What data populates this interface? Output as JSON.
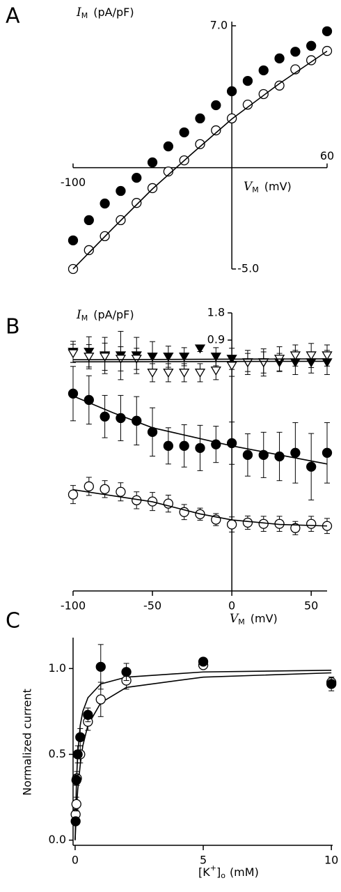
{
  "chart_data": [
    {
      "type": "scatter",
      "panel_label": "A",
      "color": "#000000",
      "ylabel": {
        "symbol": "I",
        "sub": "M",
        "unit": "(pA/pF)"
      },
      "xlabel": {
        "symbol": "V",
        "sub": "M",
        "unit": "(mV)"
      },
      "xlim": [
        -100,
        60
      ],
      "ylim": [
        -5,
        7
      ],
      "xticks": [
        -100,
        60
      ],
      "yticks": [
        {
          "value": 7,
          "label": "7.0"
        },
        {
          "value": -5,
          "label": "-5.0"
        }
      ],
      "x": [
        -100,
        -90,
        -80,
        -70,
        -60,
        -50,
        -40,
        -30,
        -20,
        -10,
        0,
        10,
        20,
        30,
        40,
        50,
        60
      ],
      "series": [
        {
          "marker": "filled-circle",
          "values": [
            -3.59,
            -2.59,
            -1.77,
            -1.15,
            -0.5,
            0.26,
            1.05,
            1.74,
            2.43,
            3.08,
            3.77,
            4.28,
            4.8,
            5.39,
            5.72,
            6.01,
            6.73
          ]
        },
        {
          "marker": "open-circle",
          "values": [
            -5.0,
            -4.07,
            -3.38,
            -2.59,
            -1.74,
            -1.01,
            -0.19,
            0.36,
            1.16,
            1.84,
            2.43,
            3.11,
            3.63,
            4.05,
            4.85,
            5.3,
            5.76
          ]
        },
        {
          "marker": "line",
          "x": [
            -100,
            -75,
            -50,
            -25,
            0,
            30,
            60
          ],
          "values": [
            -5.0,
            -3.0,
            -1.05,
            0.7,
            2.4,
            4.15,
            5.75
          ]
        }
      ]
    },
    {
      "type": "scatter",
      "panel_label": "B",
      "color": "#000000",
      "ylabel": {
        "symbol": "I",
        "sub": "M",
        "unit": "(pA/pF)"
      },
      "xlabel": {
        "symbol": "V",
        "sub": "M",
        "unit": "(mV)"
      },
      "xlim": [
        -100,
        60
      ],
      "ylim": [
        -7.4,
        1.8
      ],
      "xticks": [
        -100,
        -50,
        0,
        50
      ],
      "yticks": [
        1.8,
        0.9
      ],
      "x": [
        -100,
        -90,
        -80,
        -70,
        -60,
        -50,
        -40,
        -30,
        -20,
        -10,
        0,
        10,
        20,
        30,
        40,
        50,
        60
      ],
      "series": [
        {
          "marker": "filled-triangle",
          "values": [
            0.51,
            0.51,
            0.39,
            0.39,
            0.39,
            0.35,
            0.35,
            0.35,
            0.62,
            0.35,
            0.28,
            0.16,
            0.16,
            0.16,
            0.16,
            0.16,
            0.16
          ],
          "errors": [
            0.35,
            0.5,
            0.6,
            0.8,
            0.6,
            0.5,
            0.35,
            0.3,
            0.1,
            0.3,
            0.35,
            0.3,
            0.35,
            0.3,
            0.4,
            0.35,
            0.4
          ]
        },
        {
          "marker": "open-triangle",
          "values": [
            0.46,
            0.35,
            0.35,
            0.28,
            0.28,
            -0.18,
            -0.18,
            -0.18,
            -0.18,
            -0.11,
            0.05,
            0.16,
            0.16,
            0.28,
            0.39,
            0.39,
            0.39
          ],
          "errors": [
            0.3,
            0.4,
            0.45,
            0.4,
            0.35,
            0.3,
            0.3,
            0.3,
            0.3,
            0.3,
            0.35,
            0.4,
            0.45,
            0.4,
            0.35,
            0.4,
            0.35
          ]
        },
        {
          "marker": "filled-circle",
          "values": [
            -0.87,
            -1.08,
            -1.63,
            -1.68,
            -1.77,
            -2.14,
            -2.6,
            -2.6,
            -2.67,
            -2.55,
            -2.51,
            -2.9,
            -2.9,
            -2.95,
            -2.83,
            -3.29,
            -2.83
          ],
          "errors": [
            0.9,
            0.8,
            0.7,
            0.75,
            0.8,
            0.8,
            0.6,
            0.7,
            0.75,
            0.6,
            0.7,
            0.7,
            0.75,
            0.8,
            1.0,
            1.1,
            1.0
          ]
        },
        {
          "marker": "open-circle",
          "values": [
            -4.21,
            -3.94,
            -4.03,
            -4.12,
            -4.4,
            -4.44,
            -4.51,
            -4.79,
            -4.86,
            -5.04,
            -5.2,
            -5.14,
            -5.18,
            -5.18,
            -5.32,
            -5.18,
            -5.25
          ],
          "errors": [
            0.3,
            0.3,
            0.28,
            0.3,
            0.28,
            0.3,
            0.28,
            0.25,
            0.2,
            0.2,
            0.25,
            0.22,
            0.25,
            0.25,
            0.22,
            0.25,
            0.25
          ]
        },
        {
          "marker": "line",
          "x": [
            -100,
            60
          ],
          "values": [
            0.25,
            0.28
          ]
        },
        {
          "marker": "line",
          "x": [
            -100,
            60
          ],
          "values": [
            0.18,
            0.2
          ]
        },
        {
          "marker": "line",
          "x": [
            -100,
            -75,
            -50,
            -25,
            0,
            30,
            60
          ],
          "values": [
            -0.95,
            -1.5,
            -2.0,
            -2.3,
            -2.6,
            -2.9,
            -3.2
          ]
        },
        {
          "marker": "line",
          "x": [
            -100,
            -50,
            -20,
            0,
            30,
            60
          ],
          "values": [
            -4.05,
            -4.45,
            -4.85,
            -5.05,
            -5.2,
            -5.25
          ]
        }
      ]
    },
    {
      "type": "scatter",
      "panel_label": "C",
      "color": "#000000",
      "ylabel": {
        "text": "Normalized current"
      },
      "xlabel": {
        "pre": "[K",
        "sup": "+",
        "mid": "]",
        "sub": "o",
        "unit": "(mM)"
      },
      "xlim": [
        -0.08,
        10.05
      ],
      "ylim": [
        -0.03,
        1.18
      ],
      "xticks": [
        0,
        5,
        10
      ],
      "yticks": [
        {
          "value": 0,
          "label": "0.0"
        },
        {
          "value": 0.5,
          "label": "0.5"
        },
        {
          "value": 1,
          "label": "1.0"
        }
      ],
      "series": [
        {
          "marker": "line",
          "x": [
            0,
            0.05,
            0.1,
            0.2,
            0.3,
            0.5,
            1,
            2,
            5,
            10
          ],
          "values": [
            0,
            0.33,
            0.5,
            0.67,
            0.75,
            0.83,
            0.91,
            0.95,
            0.98,
            0.99
          ]
        },
        {
          "marker": "line",
          "x": [
            0,
            0.05,
            0.1,
            0.2,
            0.3,
            0.5,
            1,
            2,
            5,
            10
          ],
          "values": [
            0,
            0.17,
            0.29,
            0.44,
            0.55,
            0.67,
            0.8,
            0.89,
            0.95,
            0.975
          ]
        },
        {
          "marker": "open-circle",
          "x": [
            0.02,
            0.05,
            0.07,
            0.2,
            0.5,
            1,
            2,
            5,
            10
          ],
          "values": [
            0.15,
            0.21,
            0.36,
            0.5,
            0.69,
            0.82,
            0.93,
            1.02,
            0.92
          ],
          "errors": [
            0.03,
            0.04,
            0.04,
            0.05,
            0.05,
            0.1,
            0.05,
            0.02,
            0.03
          ]
        },
        {
          "marker": "filled-circle",
          "x": [
            0.02,
            0.05,
            0.1,
            0.2,
            0.5,
            1,
            2,
            5,
            10
          ],
          "values": [
            0.11,
            0.35,
            0.5,
            0.6,
            0.73,
            1.01,
            0.98,
            1.04,
            0.91
          ],
          "errors": [
            0.02,
            0.03,
            0.05,
            0.05,
            0.04,
            0.13,
            0.05,
            0.02,
            0.04
          ]
        }
      ]
    }
  ]
}
